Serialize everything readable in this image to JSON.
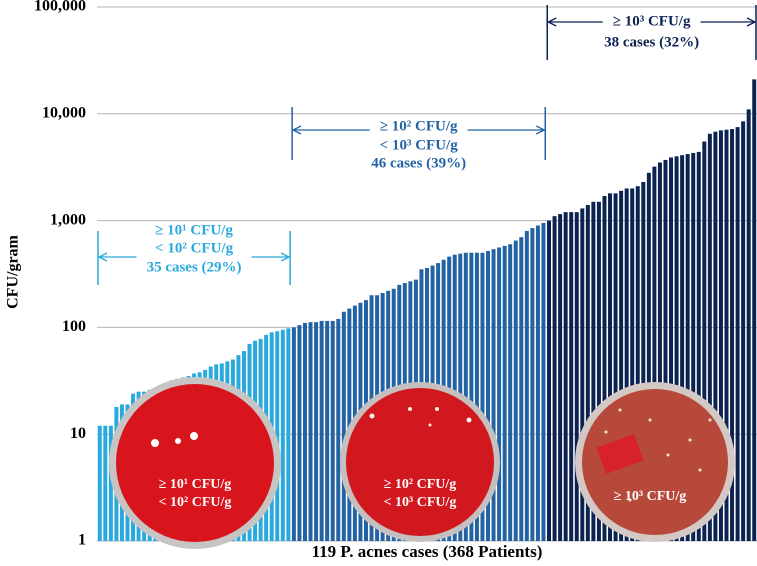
{
  "chart_data": {
    "type": "bar",
    "y_label": "CFU/gram",
    "x_label": "119 P. acnes cases (368 Patients)",
    "log_scale": true,
    "grid": true,
    "ylim": [
      1,
      100000
    ],
    "yticks": [
      1,
      10,
      100,
      {
        "value": 1000,
        "label": "1,000"
      },
      {
        "value": 10000,
        "label": "10,000"
      },
      {
        "value": 100000,
        "label": "100,000"
      }
    ],
    "series": [
      {
        "color": "#2aa9dc",
        "values": [
          12,
          12,
          12,
          18,
          19,
          19,
          24,
          25,
          25,
          26,
          27,
          28,
          30,
          32,
          33,
          34,
          35,
          37,
          38,
          40,
          43,
          45,
          46,
          48,
          50,
          55,
          60,
          70,
          75,
          78,
          85,
          90,
          92,
          95,
          98
        ]
      },
      {
        "color": "#2363a3",
        "values": [
          100,
          105,
          110,
          112,
          112,
          115,
          115,
          115,
          120,
          140,
          150,
          160,
          170,
          180,
          200,
          200,
          210,
          220,
          230,
          250,
          260,
          270,
          280,
          350,
          360,
          380,
          400,
          430,
          460,
          480,
          490,
          500,
          500,
          500,
          500,
          520,
          540,
          560,
          580,
          600,
          650,
          700,
          800,
          850,
          900,
          950
        ]
      },
      {
        "color": "#0c2352",
        "values": [
          1000,
          1100,
          1150,
          1200,
          1200,
          1200,
          1300,
          1400,
          1500,
          1500,
          1700,
          1800,
          1800,
          1900,
          2000,
          2000,
          2100,
          2300,
          2800,
          3200,
          3500,
          3700,
          3900,
          4000,
          4100,
          4200,
          4300,
          4400,
          5500,
          6500,
          6800,
          7000,
          7100,
          7200,
          7500,
          8500,
          11000,
          21000
        ]
      }
    ],
    "annotations": [
      [
        "≥ 10¹ CFU/g",
        "< 10² CFU/g",
        "35 cases (29%)"
      ],
      [
        "≥ 10² CFU/g",
        "< 10³ CFU/g",
        "46 cases (39%)"
      ],
      [
        "≥ 10³ CFU/g",
        "38 cases (32%)"
      ]
    ],
    "dish_labels": [
      [
        "≥ 10¹ CFU/g",
        "< 10² CFU/g"
      ],
      [
        "≥ 10² CFU/g",
        "< 10³ CFU/g"
      ],
      [
        "≥ 10³ CFU/g"
      ]
    ]
  }
}
